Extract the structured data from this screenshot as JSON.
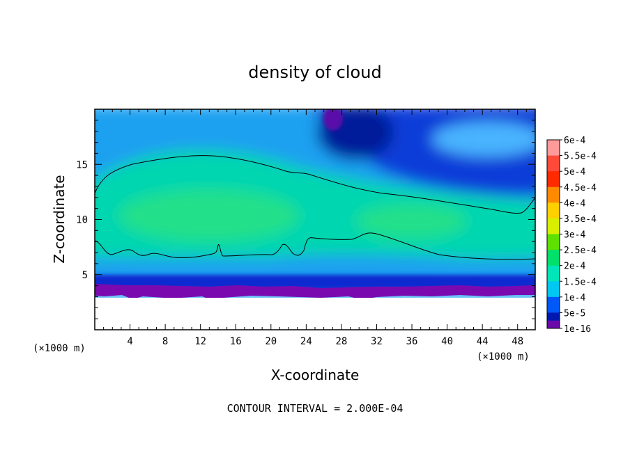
{
  "chart_data": {
    "type": "heatmap",
    "title": "density of cloud",
    "xlabel": "X-coordinate",
    "ylabel": "Z-coordinate",
    "x_unit": "(×1000 m)",
    "x_unit_right": "(×1000 m)",
    "xlim": [
      0,
      50
    ],
    "ylim": [
      0,
      20
    ],
    "x_ticks": [
      4,
      8,
      12,
      16,
      20,
      24,
      28,
      32,
      36,
      40,
      44,
      48
    ],
    "y_ticks": [
      5,
      10,
      15
    ],
    "colorbar": {
      "labels": [
        "6e-4",
        "5.5e-4",
        "5e-4",
        "4.5e-4",
        "4e-4",
        "3.5e-4",
        "3e-4",
        "2.5e-4",
        "2e-4",
        "1.5e-4",
        "1e-4",
        "5e-5",
        "1e-16"
      ],
      "colors": [
        "#ff9a9a",
        "#ff4a3a",
        "#ff2a00",
        "#ff8a00",
        "#ffd000",
        "#d8f000",
        "#5ee000",
        "#00e06a",
        "#00e6b8",
        "#00c8f0",
        "#0058f8",
        "#0018b0",
        "#6a0aa8"
      ]
    },
    "contour_levels": [
      0.0002
    ],
    "contour_interval_note": "CONTOUR INTERVAL = 2.000E-04",
    "cloud_base_z": 3.3,
    "cloud_top_z": 20
  }
}
